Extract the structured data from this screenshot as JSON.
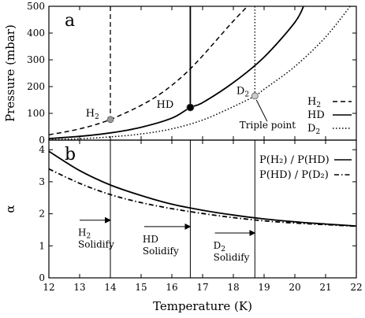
{
  "chart_data": [
    {
      "panel_id": "a",
      "type": "line",
      "xlabel": "",
      "ylabel": "Pressure (mbar)",
      "xlim": [
        12,
        22
      ],
      "ylim": [
        0,
        500
      ],
      "x_ticks": [
        12,
        13,
        14,
        15,
        16,
        17,
        18,
        19,
        20,
        21,
        22
      ],
      "y_ticks": [
        0,
        100,
        200,
        300,
        400,
        500
      ],
      "grid": false,
      "legend_position": "bottom-right",
      "series": [
        {
          "name": "H2",
          "style": "dashed",
          "color": "#000000",
          "x": [
            12.0,
            12.5,
            13.0,
            13.5,
            14.0,
            14.5,
            15.0,
            15.5,
            16.0,
            16.5,
            17.0,
            17.5,
            18.0,
            18.5
          ],
          "y": [
            20,
            30,
            42,
            57,
            77,
            102,
            130,
            163,
            205,
            255,
            315,
            380,
            445,
            505
          ]
        },
        {
          "name": "HD",
          "style": "solid",
          "color": "#000000",
          "x": [
            12.0,
            13.0,
            14.0,
            15.0,
            16.0,
            16.6,
            17.0,
            18.0,
            19.0,
            20.0,
            20.3
          ],
          "y": [
            6,
            14,
            27,
            48,
            82,
            122,
            140,
            215,
            310,
            440,
            505
          ]
        },
        {
          "name": "D2",
          "style": "dotted",
          "color": "#000000",
          "x": [
            12.0,
            13.0,
            14.0,
            15.0,
            16.0,
            17.0,
            18.0,
            18.7,
            19.0,
            20.0,
            21.0,
            21.8
          ],
          "y": [
            2,
            5,
            12,
            23,
            42,
            75,
            125,
            165,
            190,
            275,
            385,
            500
          ]
        }
      ],
      "melting_lines": [
        {
          "series": "H2",
          "x": 14.0,
          "y_point": 77,
          "style": "dashed",
          "marker_fill": "#999999"
        },
        {
          "series": "HD",
          "x": 16.6,
          "y_point": 122,
          "style": "solid",
          "marker_fill": "#000000"
        },
        {
          "series": "D2",
          "x": 18.7,
          "y_point": 165,
          "style": "dotted",
          "marker_fill": "#cccccc"
        }
      ],
      "letter": "a",
      "labels": {
        "H2": "H",
        "HD": "HD",
        "D2": "D",
        "sub": "2"
      },
      "annotation": "Triple point",
      "legend": [
        {
          "base": "H",
          "sub": "2",
          "style": "dashed"
        },
        {
          "base": "HD",
          "sub": "",
          "style": "solid"
        },
        {
          "base": "D",
          "sub": "2",
          "style": "dotted"
        }
      ]
    },
    {
      "panel_id": "b",
      "type": "line",
      "xlabel": "Temperature (K)",
      "ylabel": "α",
      "xlim": [
        12,
        22
      ],
      "ylim": [
        0,
        4.3
      ],
      "x_ticks": [
        12,
        13,
        14,
        15,
        16,
        17,
        18,
        19,
        20,
        21,
        22
      ],
      "y_ticks": [
        0,
        1,
        2,
        3,
        4
      ],
      "grid": false,
      "legend_position": "top-right",
      "series": [
        {
          "name": "P(H2) / P(HD)",
          "style": "solid",
          "color": "#000000",
          "x": [
            12,
            13,
            14,
            15,
            16,
            17,
            18,
            19,
            20,
            21,
            22
          ],
          "y": [
            3.95,
            3.35,
            2.9,
            2.57,
            2.3,
            2.11,
            1.96,
            1.84,
            1.75,
            1.68,
            1.62
          ]
        },
        {
          "name": "P(HD) / P(D2)",
          "style": "dash-dot",
          "color": "#000000",
          "x": [
            12,
            13,
            14,
            15,
            16,
            17,
            18,
            19,
            20,
            21,
            22
          ],
          "y": [
            3.4,
            2.95,
            2.6,
            2.35,
            2.16,
            2.01,
            1.88,
            1.78,
            1.71,
            1.66,
            1.61
          ]
        }
      ],
      "solidify_lines": [
        14.0,
        16.6,
        18.7
      ],
      "letter": "b",
      "legend": [
        {
          "label": "P(H₂) / P(HD)",
          "style": "solid"
        },
        {
          "label": "P(HD) / P(D₂)",
          "style": "dash-dot"
        }
      ],
      "annotations": [
        {
          "base": "H",
          "sub": "2",
          "word": "Solidify",
          "arrow_from": 14.0,
          "arrow_to": 13.0
        },
        {
          "base": "HD",
          "sub": "",
          "word": "Solidify",
          "arrow_from": 16.6,
          "arrow_to": 15.1
        },
        {
          "base": "D",
          "sub": "2",
          "word": "Solidify",
          "arrow_from": 18.7,
          "arrow_to": 17.4
        }
      ]
    }
  ]
}
